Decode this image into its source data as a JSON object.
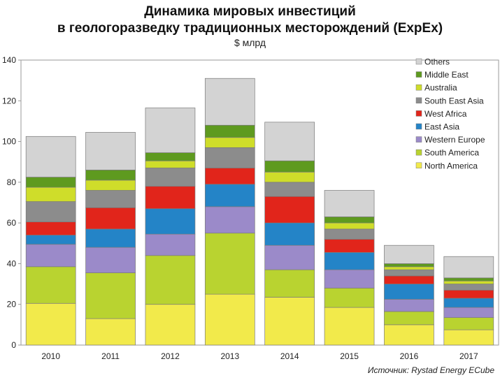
{
  "title_line1": "Динамика мировых инвестиций",
  "title_line2": "в геологоразведку традиционных месторождений (ExpEx)",
  "subtitle": "$ млрд",
  "source": "Источник: Rystad Energy ECube",
  "chart_data": {
    "type": "bar",
    "stacked": true,
    "categories": [
      "2010",
      "2011",
      "2012",
      "2013",
      "2014",
      "2015",
      "2016",
      "2017"
    ],
    "ylim": [
      0,
      140
    ],
    "yticks": [
      0,
      20,
      40,
      60,
      80,
      100,
      120,
      140
    ],
    "legend_position": "top-right",
    "series": [
      {
        "name": "North America",
        "color": "#f2ea4b",
        "values": [
          20.5,
          13,
          20,
          25,
          23.5,
          18.5,
          10,
          7.5
        ]
      },
      {
        "name": "South America",
        "color": "#b9d330",
        "values": [
          18,
          22.5,
          24,
          30,
          13.5,
          9.5,
          6.5,
          6
        ]
      },
      {
        "name": "Western Europe",
        "color": "#9b8ac9",
        "values": [
          11,
          12.5,
          10.5,
          13,
          12,
          9,
          6,
          5
        ]
      },
      {
        "name": "East Asia",
        "color": "#2484c7",
        "values": [
          4.5,
          9,
          12.5,
          11,
          11,
          8.5,
          7.5,
          4.5
        ]
      },
      {
        "name": "West Africa",
        "color": "#e1251b",
        "values": [
          6.5,
          10.5,
          11,
          8,
          13,
          6.5,
          4,
          4
        ]
      },
      {
        "name": "South East Asia",
        "color": "#8c8c8c",
        "values": [
          10,
          8.5,
          9,
          10,
          7,
          5,
          3,
          3
        ]
      },
      {
        "name": "Australia",
        "color": "#cfdd2a",
        "values": [
          7,
          5,
          3.5,
          5,
          5,
          3,
          1.5,
          1.5
        ]
      },
      {
        "name": "Middle East",
        "color": "#5e9a1f",
        "values": [
          5,
          5,
          4,
          6,
          5.5,
          3,
          1.5,
          1.5
        ]
      },
      {
        "name": "Others",
        "color": "#d3d3d3",
        "values": [
          20,
          18.5,
          22,
          23,
          19,
          13,
          9,
          10.5
        ]
      }
    ]
  }
}
